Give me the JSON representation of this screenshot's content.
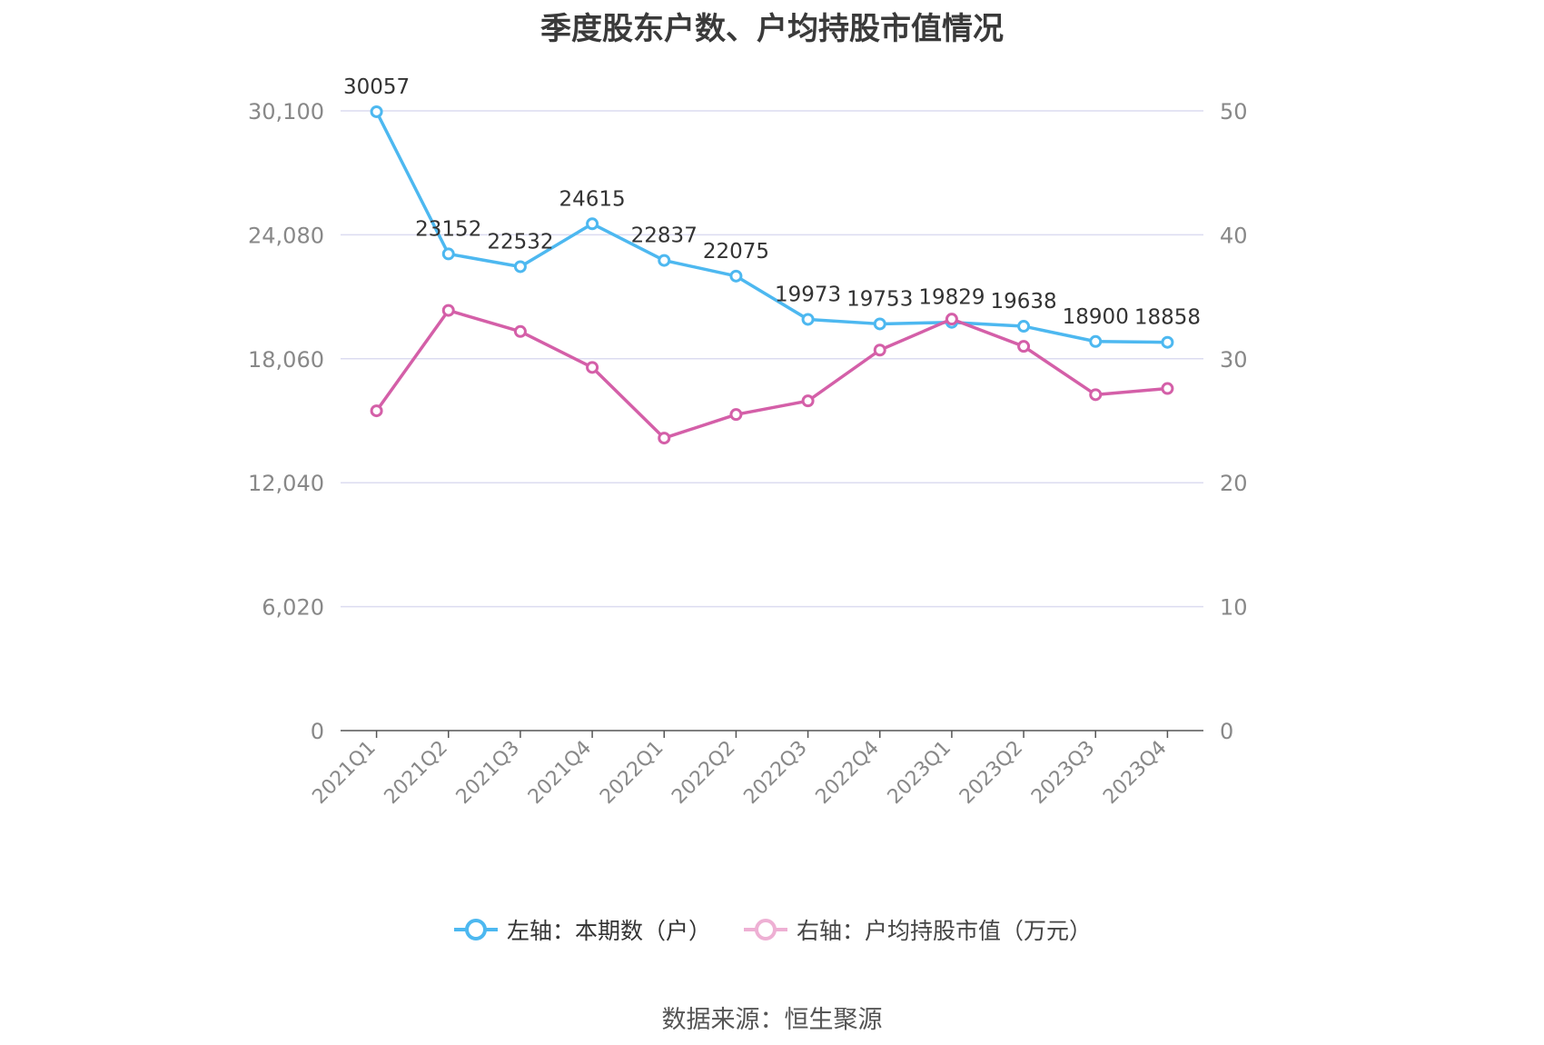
{
  "title": "季度股东户数、户均持股市值情况",
  "source": "数据来源：恒生聚源",
  "chart_data": {
    "type": "line",
    "title": "季度股东户数、户均持股市值情况",
    "categories": [
      "2021Q1",
      "2021Q2",
      "2021Q3",
      "2021Q4",
      "2022Q1",
      "2022Q2",
      "2022Q3",
      "2022Q4",
      "2023Q1",
      "2023Q2",
      "2023Q3",
      "2023Q4"
    ],
    "left_axis": {
      "ylim": [
        0,
        30100
      ],
      "ticks": [
        "0",
        "6,020",
        "12,040",
        "18,060",
        "24,080",
        "30,100"
      ]
    },
    "right_axis": {
      "ylim": [
        0,
        50
      ],
      "ticks": [
        "0",
        "10",
        "20",
        "30",
        "40",
        "50"
      ]
    },
    "grid": true,
    "legend_position": "bottom",
    "series": [
      {
        "name": "左轴：本期数（户）",
        "axis": "left",
        "color": "#4db8f0",
        "values": [
          30057,
          23152,
          22532,
          24615,
          22837,
          22075,
          19973,
          19753,
          19829,
          19638,
          18900,
          18858
        ],
        "labels": [
          "30057",
          "23152",
          "22532",
          "24615",
          "22837",
          "22075",
          "19973",
          "19753",
          "19829",
          "19638",
          "18900",
          "18858"
        ]
      },
      {
        "name": "右轴：户均持股市值（万元）",
        "axis": "right",
        "color": "#d45fa8",
        "values": [
          25.8,
          33.9,
          32.2,
          29.3,
          23.6,
          25.5,
          26.6,
          30.7,
          33.2,
          31.0,
          27.1,
          27.6
        ]
      }
    ]
  }
}
